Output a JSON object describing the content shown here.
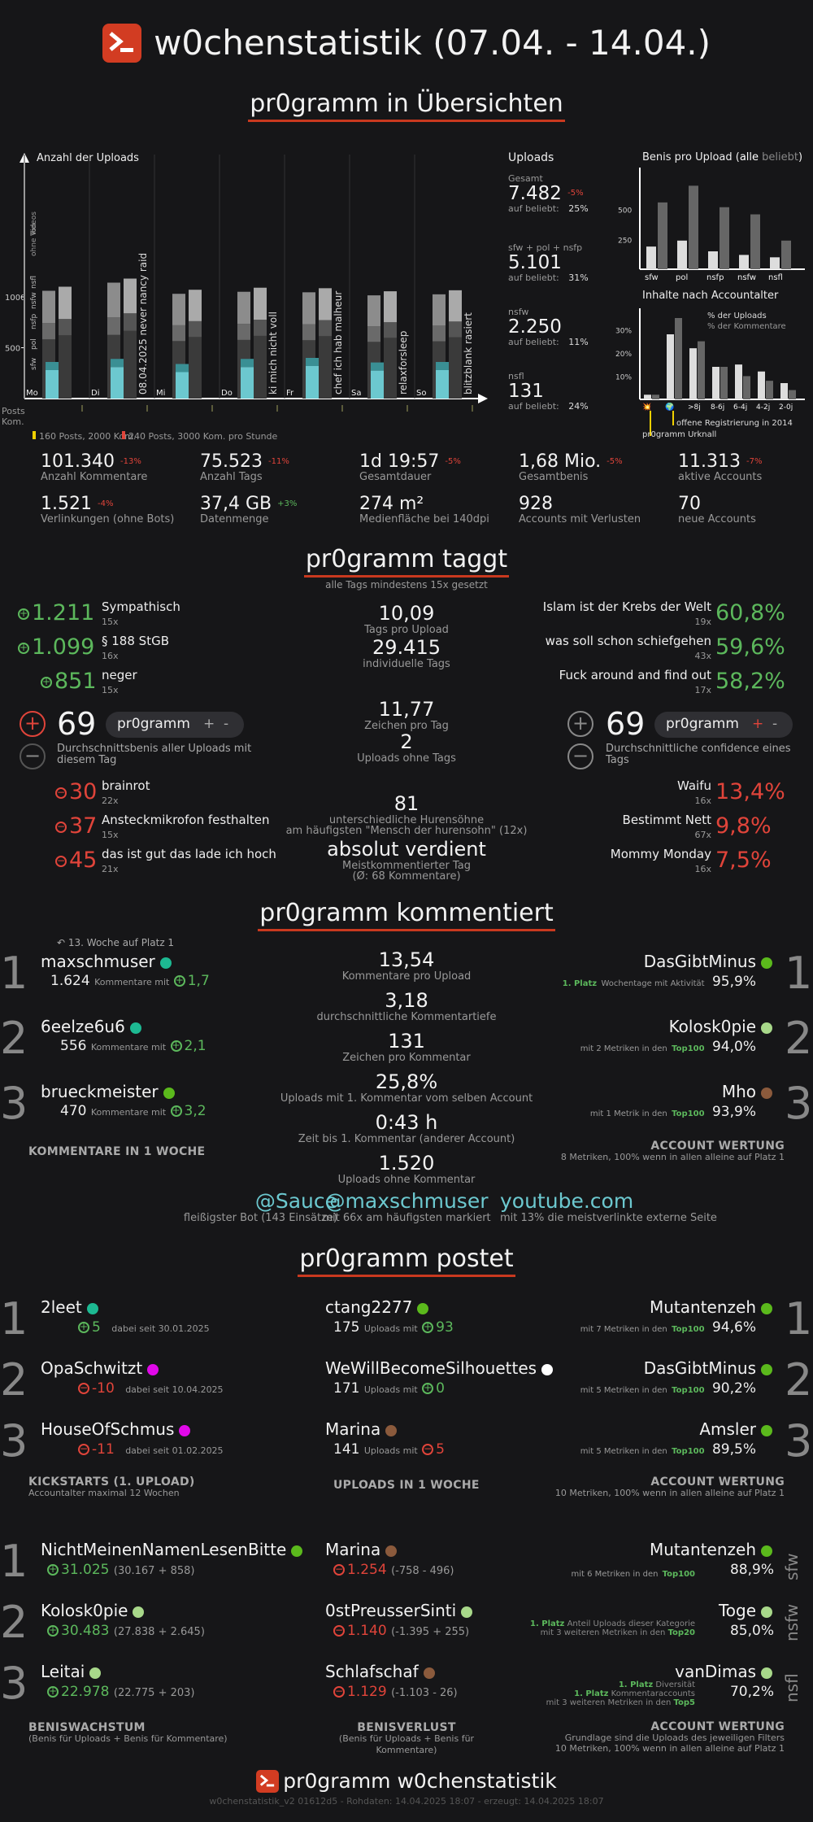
{
  "header": {
    "title": "w0chenstatistik (07.04. - 14.04.)"
  },
  "sections": {
    "overview": "pr0gramm in Übersichten",
    "tags": "pr0gramm taggt",
    "tags_sub": "alle Tags mindestens 15x gesetzt",
    "comments": "pr0gramm kommentiert",
    "posts": "pr0gramm postet"
  },
  "uploads_chart": {
    "title": "Anzahl der Uploads",
    "y1000": "1000",
    "y500": "500",
    "days": [
      "Mo",
      "Di",
      "Mi",
      "Do",
      "Fr",
      "Sa",
      "So"
    ],
    "annotations": [
      "08.04.2025 never nancy raid",
      "ki mich nicht voll",
      "chef ich hab malheur",
      "relaxforsleep",
      "blitzblank rasiert"
    ],
    "legend_side": [
      "Videos",
      "ohne Ton",
      "nsfl",
      "nsfw",
      "nsfp",
      "pol",
      "sfw"
    ],
    "posts_label": "Posts",
    "kom_label": "Kom.",
    "note1": "160 Posts, 2000 Kom.",
    "note2": "240 Posts, 3000 Kom. pro Stunde"
  },
  "chart_data": [
    {
      "type": "bar",
      "title": "Benis pro Upload (alle beliebt)",
      "categories": [
        "sfw",
        "pol",
        "nsfp",
        "nsfw",
        "nsfl"
      ],
      "series": [
        {
          "name": "alle",
          "values": [
            190,
            240,
            150,
            120,
            100
          ]
        },
        {
          "name": "beliebt",
          "values": [
            560,
            700,
            520,
            460,
            240
          ]
        }
      ],
      "ylim": [
        0,
        750
      ],
      "yticks": [
        250,
        500
      ]
    },
    {
      "type": "bar",
      "title": "Inhalte nach Accountalter",
      "categories": [
        "💥",
        "🌍",
        ">8j",
        "8-6j",
        "6-4j",
        "4-2j",
        "2-0j"
      ],
      "series": [
        {
          "name": "% der Uploads",
          "values": [
            2,
            28,
            22,
            14,
            15,
            12,
            7
          ]
        },
        {
          "name": "% der Kommentare",
          "values": [
            2,
            35,
            25,
            14,
            10,
            8,
            4
          ]
        }
      ],
      "ylim": [
        0,
        35
      ],
      "yticks": [
        10,
        20,
        30
      ],
      "notes": [
        "offene Registrierung in 2014",
        "pr0gramm Urknall"
      ]
    }
  ],
  "uploads_stats": [
    {
      "label": "Gesamt",
      "value": "7.482",
      "delta": "-5%",
      "sub": "auf beliebt:",
      "pct": "25%"
    },
    {
      "label": "sfw + pol + nsfp",
      "value": "5.101",
      "sub": "auf beliebt:",
      "pct": "31%"
    },
    {
      "label": "nsfw",
      "value": "2.250",
      "sub": "auf beliebt:",
      "pct": "11%"
    },
    {
      "label": "nsfl",
      "value": "131",
      "sub": "auf beliebt:",
      "pct": "24%"
    }
  ],
  "benis_title_a": "Benis pro Upload (",
  "benis_title_b": "alle",
  "benis_title_c": "beliebt",
  "benis_title_d": ")",
  "stats": [
    {
      "v": "101.340",
      "d": "-13%",
      "l": "Anzahl Kommentare"
    },
    {
      "v": "75.523",
      "d": "-11%",
      "l": "Anzahl Tags"
    },
    {
      "v": "1d 19:57",
      "d": "-5%",
      "l": "Gesamtdauer"
    },
    {
      "v": "1,68 Mio.",
      "d": "-5%",
      "l": "Gesamtbenis"
    },
    {
      "v": "11.313",
      "d": "-7%",
      "l": "aktive Accounts"
    },
    {
      "v": "1.521",
      "d": "-4%",
      "l": "Verlinkungen (ohne Bots)"
    },
    {
      "v": "37,4 GB",
      "d": "+3%",
      "l": "Datenmenge"
    },
    {
      "v": "274 m²",
      "d": "",
      "l": "Medienfläche bei 140dpi"
    },
    {
      "v": "928",
      "d": "",
      "l": "Accounts mit Verlusten"
    },
    {
      "v": "70",
      "d": "",
      "l": "neue Accounts"
    }
  ],
  "tags_left_top": [
    {
      "v": "1.211",
      "n": "Sympathisch",
      "c": "15x"
    },
    {
      "v": "1.099",
      "n": "§ 188 StGB",
      "c": "16x"
    },
    {
      "v": "851",
      "n": "neger",
      "c": "15x"
    }
  ],
  "tags_left_bottom": [
    {
      "v": "30",
      "n": "brainrot",
      "c": "22x"
    },
    {
      "v": "37",
      "n": "Ansteckmikrofon festhalten",
      "c": "15x"
    },
    {
      "v": "45",
      "n": "das ist gut das lade ich hoch",
      "c": "21x"
    }
  ],
  "tags_avg": {
    "value": "69",
    "pill": "pr0gramm",
    "plus": "+",
    "minus": "-",
    "desc": "Durchschnittsbenis aller Uploads mit diesem Tag"
  },
  "tags_conf": {
    "value": "69",
    "pill": "pr0gramm",
    "plus": "+",
    "minus": "-",
    "desc": "Durchschnittliche confidence eines Tags"
  },
  "tags_mid": [
    {
      "v": "10,09",
      "l": "Tags pro Upload"
    },
    {
      "v": "29.415",
      "l": "individuelle Tags"
    },
    {
      "v": "11,77",
      "l": "Zeichen pro Tag"
    },
    {
      "v": "2",
      "l": "Uploads ohne Tags"
    },
    {
      "v": "81",
      "l": "unterschiedliche Hurensöhne",
      "l2": "am häufigsten \"Mensch der hurensohn\" (12x)"
    },
    {
      "v": "absolut verdient",
      "l": "Meistkommentierter Tag",
      "l2": "(Ø: 68 Kommentare)"
    }
  ],
  "tags_right_top": [
    {
      "v": "60,8%",
      "n": "Islam ist der Krebs der Welt",
      "c": "19x"
    },
    {
      "v": "59,6%",
      "n": "was soll schon schiefgehen",
      "c": "43x"
    },
    {
      "v": "58,2%",
      "n": "Fuck around and find out",
      "c": "17x"
    }
  ],
  "tags_right_bottom": [
    {
      "v": "13,4%",
      "n": "Waifu",
      "c": "16x"
    },
    {
      "v": "9,8%",
      "n": "Bestimmt Nett",
      "c": "67x"
    },
    {
      "v": "7,5%",
      "n": "Mommy Monday",
      "c": "16x"
    }
  ],
  "comments_left": [
    {
      "r": "1",
      "u": "maxschmuser",
      "n": "1.624",
      "t": "Kommentare mit",
      "b": "1,7",
      "dot": "#1db992"
    },
    {
      "r": "2",
      "u": "6eelze6u6",
      "n": "556",
      "t": "Kommentare mit",
      "b": "2,1",
      "dot": "#1db992"
    },
    {
      "r": "3",
      "u": "brueckmeister",
      "n": "470",
      "t": "Kommentare mit",
      "b": "3,2",
      "dot": "#5bb91c"
    }
  ],
  "comments_note": "13. Woche auf Platz 1",
  "comments_left_label": "KOMMENTARE IN 1 WOCHE",
  "comments_mid": [
    {
      "v": "13,54",
      "l": "Kommentare pro Upload"
    },
    {
      "v": "3,18",
      "l": "durchschnittliche Kommentartiefe"
    },
    {
      "v": "131",
      "l": "Zeichen pro Kommentar"
    },
    {
      "v": "25,8%",
      "l": "Uploads mit 1. Kommentar vom selben Account"
    },
    {
      "v": "0:43 h",
      "l": "Zeit bis 1. Kommentar (anderer Account)"
    },
    {
      "v": "1.520",
      "l": "Uploads ohne Kommentar"
    }
  ],
  "comments_right": [
    {
      "r": "1",
      "u": "DasGibtMinus",
      "p": "95,9%",
      "s1": "1. Platz",
      "s2": "Wochentage mit Aktivität",
      "dot": "#5bb91c"
    },
    {
      "r": "2",
      "u": "Kolosk0pie",
      "p": "94,0%",
      "s1": "mit 2 Metriken in den",
      "s2": "Top100",
      "dot": "#a8d88a"
    },
    {
      "r": "3",
      "u": "Mho",
      "p": "93,9%",
      "s1": "mit 1 Metrik in den",
      "s2": "Top100",
      "dot": "#8b5a3c"
    }
  ],
  "comments_right_label": "ACCOUNT WERTUNG",
  "comments_right_sub": "8 Metriken, 100% wenn in allen alleine auf Platz 1",
  "links": [
    {
      "v": "@Sauce",
      "l": "fleißigster Bot (143 Einsätze)"
    },
    {
      "v": "@maxschmuser",
      "l": "mit 66x am häufigsten markiert"
    },
    {
      "v": "youtube.com",
      "l": "mit 13% die meistverlinkte externe Seite"
    }
  ],
  "kick": [
    {
      "r": "1",
      "u": "2leet",
      "b": "5",
      "s": "dabei seit 30.01.2025",
      "pos": true,
      "dot": "#1db992"
    },
    {
      "r": "2",
      "u": "OpaSchwitzt",
      "b": "-10",
      "s": "dabei seit 10.04.2025",
      "pos": false,
      "dot": "#e108e9"
    },
    {
      "r": "3",
      "u": "HouseOfSchmus",
      "b": "-11",
      "s": "dabei seit 01.02.2025",
      "pos": false,
      "dot": "#e108e9"
    }
  ],
  "kick_label": "KICKSTARTS (1. UPLOAD)",
  "kick_sub": "Accountalter maximal 12 Wochen",
  "uploads": [
    {
      "u": "ctang2277",
      "n": "175",
      "t": "Uploads mit",
      "b": "93",
      "pos": true,
      "dot": "#5bb91c"
    },
    {
      "u": "WeWillBecomeSilhouettes",
      "n": "171",
      "t": "Uploads mit",
      "b": "0",
      "pos": true,
      "dot": "#ffffff"
    },
    {
      "u": "Marina",
      "n": "141",
      "t": "Uploads mit",
      "b": "5",
      "pos": false,
      "dot": "#8b5a3c"
    }
  ],
  "uploads_label": "UPLOADS IN 1 WOCHE",
  "post_rank": [
    {
      "r": "1",
      "u": "Mutantenzeh",
      "p": "94,6%",
      "s1": "mit 7 Metriken in den",
      "s2": "Top100",
      "dot": "#5bb91c"
    },
    {
      "r": "2",
      "u": "DasGibtMinus",
      "p": "90,2%",
      "s1": "mit 5 Metriken in den",
      "s2": "Top100",
      "dot": "#5bb91c"
    },
    {
      "r": "3",
      "u": "Amsler",
      "p": "89,5%",
      "s1": "mit 5 Metriken in den",
      "s2": "Top100",
      "dot": "#5bb91c"
    }
  ],
  "post_rank_label": "ACCOUNT WERTUNG",
  "post_rank_sub": "10 Metriken, 100% wenn in allen alleine auf Platz 1",
  "growth": [
    {
      "r": "1",
      "u": "NichtMeinenNamenLesenBitte",
      "v": "31.025",
      "d": "(30.167 + 858)",
      "dot": "#5bb91c"
    },
    {
      "r": "2",
      "u": "Kolosk0pie",
      "v": "30.483",
      "d": "(27.838 + 2.645)",
      "dot": "#a8d88a"
    },
    {
      "r": "3",
      "u": "Leitai",
      "v": "22.978",
      "d": "(22.775 + 203)",
      "dot": "#a8d88a"
    }
  ],
  "growth_label": "BENISWACHSTUM",
  "growth_sub": "(Benis für Uploads + Benis für Kommentare)",
  "loss": [
    {
      "u": "Marina",
      "v": "1.254",
      "d": "(-758 - 496)",
      "dot": "#8b5a3c"
    },
    {
      "u": "0stPreusserSinti",
      "v": "1.140",
      "d": "(-1.395 + 255)",
      "dot": "#a8d88a"
    },
    {
      "u": "Schlafschaf",
      "v": "1.129",
      "d": "(-1.103 - 26)",
      "dot": "#8b5a3c"
    }
  ],
  "loss_label": "BENISVERLUST",
  "loss_sub": "(Benis für Uploads + Benis für Kommentare)",
  "filter_rank": [
    {
      "r": "1",
      "u": "Mutantenzeh",
      "p": "88,9%",
      "s1": "mit 6 Metriken in den",
      "s2": "Top100",
      "side": "sfw",
      "dot": "#5bb91c"
    },
    {
      "r": "2",
      "u": "Toge",
      "p": "85,0%",
      "s0": "1. Platz",
      "s1": "Anteil Uploads dieser Kategorie",
      "s1b": "mit 3 weiteren Metriken in den",
      "s2": "Top20",
      "side": "nsfw",
      "dot": "#a8d88a"
    },
    {
      "r": "3",
      "u": "vanDimas",
      "p": "70,2%",
      "s0": "1. Platz",
      "s1": "Diversität",
      "s0b": "1. Platz",
      "s1b": "Kommentaraccounts",
      "s1c": "mit 3 weiteren Metriken in den",
      "s2": "Top5",
      "side": "nsfl",
      "dot": "#a8d88a"
    }
  ],
  "filter_label": "ACCOUNT WERTUNG",
  "filter_sub": "Grundlage sind die Uploads des jeweiligen Filters",
  "filter_sub2": "10 Metriken, 100% wenn in allen alleine auf Platz 1",
  "footer": {
    "title": "pr0gramm w0chenstatistik",
    "meta": "w0chenstatistik_v2 01612d5 - Rohdaten: 14.04.2025 18:07 - erzeugt: 14.04.2025 18:07"
  },
  "colors": {
    "accent": "#d23c22",
    "green": "#5cb85c",
    "red": "#e0443a",
    "cyan": "#6cc8cf"
  }
}
